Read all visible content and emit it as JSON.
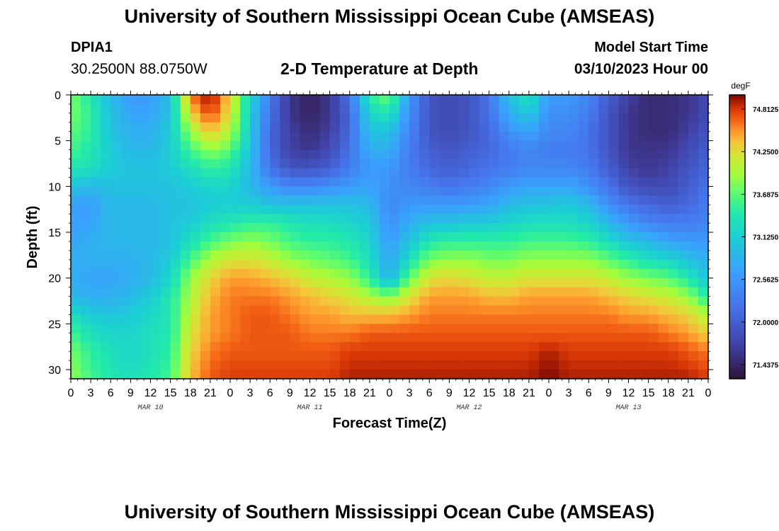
{
  "header": {
    "title": "University of Southern Mississippi Ocean Cube (AMSEAS)",
    "station": "DPIA1",
    "coords": "30.2500N  88.0750W",
    "subtitle": "2-D Temperature at Depth",
    "model_start_label": "Model Start Time",
    "model_start_value": "03/10/2023 Hour 00"
  },
  "footer": {
    "title": "University of Southern Mississippi Ocean Cube (AMSEAS)"
  },
  "colors": {
    "background": "#ffffff",
    "frame": "#000000"
  },
  "chart_data": {
    "type": "heatmap",
    "title": "2-D Temperature at Depth",
    "xlabel": "Forecast Time(Z)",
    "ylabel": "Depth (ft)",
    "x_range_hours": [
      0,
      96
    ],
    "x_tick_step_hours": 3,
    "x_tick_labels": [
      "0",
      "3",
      "6",
      "9",
      "12",
      "15",
      "18",
      "21",
      "0",
      "3",
      "6",
      "9",
      "12",
      "15",
      "18",
      "21",
      "0",
      "3",
      "6",
      "9",
      "12",
      "15",
      "18",
      "21",
      "0",
      "3",
      "6",
      "9",
      "12",
      "15",
      "18",
      "21",
      "0"
    ],
    "day_labels": [
      {
        "label": "MAR 10",
        "hour": 12
      },
      {
        "label": "MAR 11",
        "hour": 36
      },
      {
        "label": "MAR 12",
        "hour": 60
      },
      {
        "label": "MAR 13",
        "hour": 84
      }
    ],
    "y_range_ft": [
      0,
      31
    ],
    "y_ticks": [
      0,
      5,
      10,
      15,
      20,
      25,
      30
    ],
    "colorbar": {
      "unit": "degF",
      "min": 71.25,
      "max": 75.0,
      "tick_values": [
        74.8125,
        74.25,
        73.6875,
        73.125,
        72.5625,
        72.0,
        71.4375
      ],
      "tick_labels": [
        "74.8125",
        "74.2500",
        "73.6875",
        "73.1250",
        "72.5625",
        "72.0000",
        "71.4375"
      ]
    },
    "grid_depths_ft": [
      0,
      2,
      4,
      6,
      8,
      10,
      12,
      14,
      16,
      18,
      20,
      22,
      24,
      26,
      28,
      31
    ],
    "grid_hours": [
      0,
      3,
      6,
      9,
      12,
      15,
      18,
      21,
      24,
      27,
      30,
      33,
      36,
      39,
      42,
      45,
      48,
      51,
      54,
      57,
      60,
      63,
      66,
      69,
      72,
      75,
      78,
      81,
      84,
      87,
      90,
      93,
      96
    ],
    "temperature_degF": [
      [
        73.8,
        73.4,
        72.9,
        72.6,
        72.6,
        73.0,
        74.6,
        75.0,
        74.3,
        73.2,
        72.3,
        71.6,
        71.4,
        71.6,
        72.2,
        73.5,
        73.8,
        72.6,
        71.9,
        71.8,
        71.9,
        72.2,
        73.0,
        73.4,
        72.6,
        72.6,
        72.4,
        72.0,
        71.7,
        71.5,
        71.5,
        71.6,
        71.8
      ],
      [
        73.8,
        73.5,
        73.0,
        72.7,
        72.7,
        73.0,
        74.3,
        74.8,
        74.2,
        73.1,
        72.2,
        71.6,
        71.4,
        71.6,
        72.1,
        73.2,
        73.4,
        72.5,
        71.9,
        71.8,
        71.9,
        72.2,
        72.8,
        73.1,
        72.5,
        72.5,
        72.3,
        71.9,
        71.6,
        71.5,
        71.5,
        71.6,
        71.8
      ],
      [
        73.7,
        73.5,
        73.0,
        72.8,
        72.8,
        73.1,
        73.9,
        74.4,
        74.0,
        73.1,
        72.1,
        71.7,
        71.5,
        71.7,
        72.1,
        73.0,
        73.0,
        72.4,
        71.9,
        71.8,
        71.9,
        72.1,
        72.5,
        72.7,
        72.4,
        72.4,
        72.2,
        71.9,
        71.6,
        71.5,
        71.5,
        71.7,
        71.9
      ],
      [
        73.6,
        73.4,
        73.1,
        72.9,
        72.9,
        73.1,
        73.6,
        73.9,
        73.7,
        73.0,
        72.1,
        71.7,
        71.6,
        71.8,
        72.2,
        72.8,
        72.8,
        72.3,
        72.0,
        71.9,
        72.0,
        72.1,
        72.3,
        72.4,
        72.3,
        72.3,
        72.2,
        71.9,
        71.6,
        71.6,
        71.6,
        71.8,
        72.0
      ],
      [
        73.4,
        73.3,
        73.1,
        73.0,
        73.0,
        73.1,
        73.3,
        73.5,
        73.4,
        72.9,
        72.2,
        71.9,
        71.9,
        72.0,
        72.3,
        72.6,
        72.6,
        72.3,
        72.1,
        72.0,
        72.1,
        72.2,
        72.3,
        72.4,
        72.4,
        72.4,
        72.3,
        72.0,
        71.7,
        71.6,
        71.7,
        71.9,
        72.1
      ],
      [
        73.0,
        72.9,
        73.0,
        73.0,
        73.0,
        73.0,
        73.1,
        73.2,
        73.2,
        72.9,
        72.6,
        72.4,
        72.4,
        72.5,
        72.6,
        72.7,
        72.5,
        72.4,
        72.3,
        72.2,
        72.3,
        72.4,
        72.6,
        72.7,
        72.7,
        72.7,
        72.5,
        72.2,
        71.9,
        71.8,
        71.8,
        72.0,
        72.2
      ],
      [
        72.7,
        72.6,
        72.9,
        72.9,
        72.9,
        73.0,
        73.0,
        73.1,
        73.1,
        73.1,
        73.0,
        73.0,
        73.0,
        73.0,
        73.0,
        72.9,
        72.4,
        72.6,
        72.6,
        72.6,
        72.6,
        72.7,
        72.9,
        73.0,
        73.0,
        73.1,
        72.9,
        72.5,
        72.2,
        72.1,
        72.0,
        72.1,
        72.3
      ],
      [
        72.6,
        72.7,
        72.9,
        72.9,
        72.9,
        73.0,
        73.1,
        73.3,
        73.4,
        73.5,
        73.5,
        73.4,
        73.3,
        73.3,
        73.2,
        73.1,
        72.5,
        72.8,
        73.0,
        73.0,
        73.1,
        73.1,
        73.2,
        73.3,
        73.3,
        73.3,
        73.2,
        72.9,
        72.6,
        72.4,
        72.3,
        72.3,
        72.4
      ],
      [
        72.7,
        72.8,
        72.9,
        72.9,
        72.9,
        73.0,
        73.3,
        73.6,
        73.8,
        73.9,
        73.8,
        73.6,
        73.5,
        73.5,
        73.4,
        73.2,
        72.6,
        73.0,
        73.4,
        73.5,
        73.5,
        73.5,
        73.5,
        73.6,
        73.6,
        73.6,
        73.5,
        73.3,
        73.0,
        72.9,
        72.7,
        72.6,
        72.6
      ],
      [
        72.8,
        72.8,
        72.8,
        72.8,
        72.9,
        73.1,
        73.6,
        74.0,
        74.2,
        74.2,
        74.1,
        73.9,
        73.8,
        73.7,
        73.6,
        73.3,
        72.7,
        73.3,
        73.8,
        73.9,
        73.9,
        73.8,
        73.8,
        73.9,
        73.9,
        73.9,
        73.9,
        73.7,
        73.5,
        73.3,
        73.2,
        73.0,
        72.8
      ],
      [
        72.8,
        72.7,
        72.7,
        72.8,
        72.9,
        73.2,
        73.9,
        74.3,
        74.5,
        74.5,
        74.4,
        74.3,
        74.1,
        74.0,
        73.9,
        73.5,
        72.8,
        73.7,
        74.2,
        74.3,
        74.2,
        74.1,
        74.1,
        74.2,
        74.2,
        74.2,
        74.2,
        74.1,
        73.9,
        73.8,
        73.7,
        73.4,
        73.0
      ],
      [
        72.9,
        72.8,
        72.8,
        72.9,
        73.1,
        73.4,
        74.0,
        74.4,
        74.6,
        74.6,
        74.6,
        74.5,
        74.4,
        74.3,
        74.2,
        74.0,
        73.8,
        74.2,
        74.5,
        74.5,
        74.5,
        74.4,
        74.4,
        74.5,
        74.5,
        74.5,
        74.5,
        74.4,
        74.3,
        74.2,
        74.1,
        73.9,
        73.4
      ],
      [
        73.3,
        73.1,
        73.0,
        73.1,
        73.2,
        73.4,
        74.1,
        74.5,
        74.6,
        74.7,
        74.7,
        74.6,
        74.5,
        74.5,
        74.4,
        74.4,
        74.4,
        74.5,
        74.6,
        74.6,
        74.6,
        74.6,
        74.6,
        74.6,
        74.6,
        74.6,
        74.6,
        74.6,
        74.5,
        74.5,
        74.4,
        74.3,
        74.0
      ],
      [
        73.6,
        73.3,
        73.2,
        73.2,
        73.3,
        73.4,
        74.2,
        74.5,
        74.6,
        74.7,
        74.7,
        74.7,
        74.6,
        74.6,
        74.6,
        74.7,
        74.7,
        74.7,
        74.7,
        74.7,
        74.7,
        74.7,
        74.7,
        74.7,
        74.7,
        74.7,
        74.7,
        74.7,
        74.7,
        74.7,
        74.6,
        74.5,
        74.3
      ],
      [
        73.8,
        73.5,
        73.3,
        73.2,
        73.3,
        73.5,
        74.3,
        74.6,
        74.7,
        74.7,
        74.7,
        74.7,
        74.7,
        74.7,
        74.8,
        74.8,
        74.8,
        74.8,
        74.8,
        74.8,
        74.8,
        74.8,
        74.8,
        74.8,
        74.9,
        74.8,
        74.8,
        74.8,
        74.8,
        74.8,
        74.8,
        74.7,
        74.6
      ],
      [
        73.9,
        73.6,
        73.4,
        73.3,
        73.4,
        73.6,
        74.4,
        74.7,
        74.8,
        74.8,
        74.8,
        74.8,
        74.8,
        74.8,
        74.9,
        74.9,
        74.9,
        74.9,
        74.9,
        74.9,
        74.9,
        74.9,
        74.9,
        74.9,
        75.0,
        74.9,
        74.9,
        74.9,
        74.9,
        74.9,
        74.9,
        74.9,
        74.8
      ]
    ]
  }
}
